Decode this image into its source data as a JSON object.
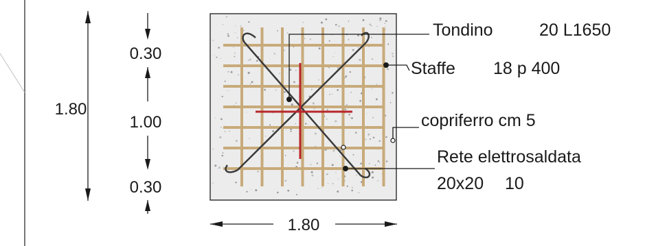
{
  "dimensions": {
    "total_height": "1.80",
    "top_segment": "0.30",
    "middle_segment": "1.00",
    "bottom_segment": "0.30",
    "total_width": "1.80"
  },
  "annotations": {
    "tondino": {
      "name": "Tondino",
      "spec": "20 L1650"
    },
    "staffe": {
      "name": "Staffe",
      "spec": "18 p 400"
    },
    "copriferro": "copriferro cm 5",
    "rete": {
      "line1": "Rete elettrosaldata",
      "line2_a": "20x20",
      "line2_b": "10"
    }
  },
  "colors": {
    "concrete": "#ececec",
    "mesh_bars": "#c8aa7a",
    "cross_bars": "#b8262b",
    "diagonal_bars": "#3a3a3a",
    "lines": "#1a1a1a"
  },
  "grid": {
    "vertical_bars": 8,
    "horizontal_bars": 7
  }
}
